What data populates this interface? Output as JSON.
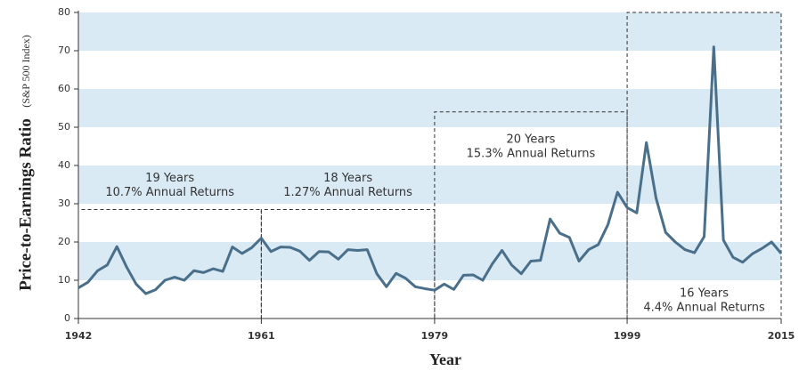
{
  "chart_data": {
    "type": "line",
    "ylabel": "Price-to-Earnings Ratio",
    "ylabel_note": "(S&P 500 Index)",
    "xlabel": "Year",
    "x": [
      1942,
      1943,
      1944,
      1945,
      1946,
      1947,
      1948,
      1949,
      1950,
      1951,
      1952,
      1953,
      1954,
      1955,
      1956,
      1957,
      1958,
      1959,
      1960,
      1961,
      1962,
      1963,
      1964,
      1965,
      1966,
      1967,
      1968,
      1969,
      1970,
      1971,
      1972,
      1973,
      1974,
      1975,
      1976,
      1977,
      1978,
      1979,
      1980,
      1981,
      1982,
      1983,
      1984,
      1985,
      1986,
      1987,
      1988,
      1989,
      1990,
      1991,
      1992,
      1993,
      1994,
      1995,
      1996,
      1997,
      1998,
      1999,
      2000,
      2001,
      2002,
      2003,
      2004,
      2005,
      2006,
      2007,
      2008,
      2009,
      2010,
      2011,
      2012,
      2013,
      2014,
      2015
    ],
    "series": [
      {
        "name": "P/E",
        "color": "#4a6f8a",
        "values": [
          8,
          9.5,
          12.5,
          14,
          18.8,
          13.5,
          9,
          6.5,
          7.5,
          10,
          10.8,
          10,
          12.5,
          12,
          13,
          12.3,
          18.7,
          17,
          18.5,
          21,
          17.5,
          18.7,
          18.6,
          17.6,
          15.2,
          17.5,
          17.4,
          15.5,
          18,
          17.8,
          18,
          11.7,
          8.3,
          11.8,
          10.5,
          8.3,
          7.8,
          7.4,
          9,
          7.6,
          11.3,
          11.4,
          10,
          14.3,
          17.8,
          14,
          11.7,
          15,
          15.2,
          26,
          22.3,
          21.2,
          15,
          18,
          19.3,
          24.5,
          33,
          29,
          27.6,
          46,
          31.5,
          22.5,
          20,
          18,
          17.2,
          21.4,
          71,
          20.5,
          16,
          14.7,
          16.9,
          18.3,
          20,
          17
        ]
      }
    ],
    "xlim": [
      1942,
      2015
    ],
    "xticks": [
      1942,
      1961,
      1979,
      1999,
      2015
    ],
    "ylim": [
      0,
      80
    ],
    "yticks": [
      0,
      10,
      20,
      30,
      40,
      50,
      60,
      70,
      80
    ],
    "band_color": "#daeaf5",
    "annotations": [
      {
        "start": 1942,
        "end": 1961,
        "top": 28.5,
        "lines": [
          "19 Years",
          "10.7% Annual Returns"
        ]
      },
      {
        "start": 1961,
        "end": 1979,
        "top": 28.5,
        "lines": [
          "18 Years",
          "1.27% Annual Returns"
        ]
      },
      {
        "start": 1979,
        "end": 1999,
        "top": 54,
        "lines": [
          "20 Years",
          "15.3% Annual Returns"
        ]
      },
      {
        "start": 1999,
        "end": 2015,
        "top": 80,
        "lines": [
          "16 Years",
          "4.4% Annual Returns"
        ]
      }
    ]
  }
}
